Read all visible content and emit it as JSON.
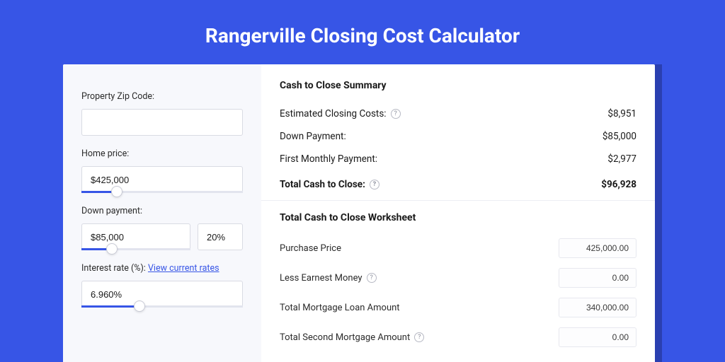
{
  "colors": {
    "page_bg": "#3755e6",
    "shadow_bg": "#2a3fb0",
    "card_bg": "#ffffff",
    "left_bg": "#f7f8fc",
    "border": "#d9dbe3",
    "slider_track": "#e2e4ee",
    "slider_fill": "#3755e6",
    "link": "#3755e6",
    "text": "#1a1a1a"
  },
  "title": "Rangerville Closing Cost Calculator",
  "inputs": {
    "zip": {
      "label": "Property Zip Code:",
      "value": ""
    },
    "home_price": {
      "label": "Home price:",
      "value": "$425,000",
      "slider_pct": 22
    },
    "down_payment": {
      "label": "Down payment:",
      "value": "$85,000",
      "pct_value": "20%",
      "slider_pct": 28
    },
    "interest_rate": {
      "label": "Interest rate (%):",
      "link_text": "View current rates",
      "value": "6.960%",
      "slider_pct": 36
    }
  },
  "summary": {
    "title": "Cash to Close Summary",
    "rows": [
      {
        "label": "Estimated Closing Costs:",
        "help": true,
        "value": "$8,951"
      },
      {
        "label": "Down Payment:",
        "help": false,
        "value": "$85,000"
      },
      {
        "label": "First Monthly Payment:",
        "help": false,
        "value": "$2,977"
      }
    ],
    "total": {
      "label": "Total Cash to Close:",
      "help": true,
      "value": "$96,928"
    }
  },
  "worksheet": {
    "title": "Total Cash to Close Worksheet",
    "rows": [
      {
        "label": "Purchase Price",
        "help": false,
        "value": "425,000.00"
      },
      {
        "label": "Less Earnest Money",
        "help": true,
        "value": "0.00"
      },
      {
        "label": "Total Mortgage Loan Amount",
        "help": false,
        "value": "340,000.00"
      },
      {
        "label": "Total Second Mortgage Amount",
        "help": true,
        "value": "0.00"
      }
    ]
  }
}
